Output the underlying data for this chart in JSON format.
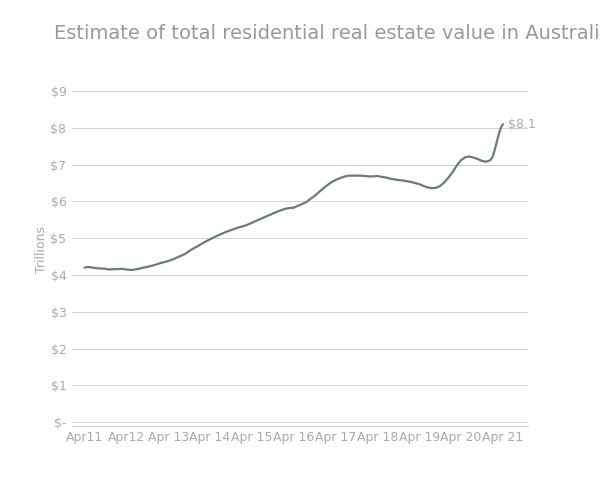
{
  "title": "Estimate of total residential real estate value in Australia",
  "ylabel": "Trillions",
  "x_labels": [
    "Apr11",
    "Apr12",
    "Apr 13",
    "Apr 14",
    "Apr 15",
    "Apr 16",
    "Apr 17",
    "Apr 18",
    "Apr 19",
    "Apr 20",
    "Apr 21"
  ],
  "x_positions": [
    0,
    1,
    2,
    3,
    4,
    5,
    6,
    7,
    8,
    9,
    10
  ],
  "y_ticks": [
    0,
    1,
    2,
    3,
    4,
    5,
    6,
    7,
    8,
    9
  ],
  "y_tick_labels": [
    "$-",
    "$1",
    "$2",
    "$3",
    "$4",
    "$5",
    "$6",
    "$7",
    "$8",
    "$9"
  ],
  "ylim": [
    -0.1,
    9.5
  ],
  "xlim": [
    -0.3,
    10.6
  ],
  "line_color": "#6b7885",
  "line_width": 1.6,
  "background_color": "#ffffff",
  "grid_color": "#d0d0d0",
  "annotation_text": "$8.1",
  "title_fontsize": 14,
  "title_color": "#999999",
  "axis_label_fontsize": 9,
  "tick_fontsize": 9,
  "tick_color": "#aaaaaa",
  "xy_data": [
    [
      0.0,
      4.2
    ],
    [
      0.08,
      4.22
    ],
    [
      0.15,
      4.21
    ],
    [
      0.25,
      4.19
    ],
    [
      0.35,
      4.18
    ],
    [
      0.5,
      4.17
    ],
    [
      0.6,
      4.15
    ],
    [
      0.7,
      4.16
    ],
    [
      0.8,
      4.16
    ],
    [
      0.9,
      4.17
    ],
    [
      1.0,
      4.15
    ],
    [
      1.1,
      4.14
    ],
    [
      1.15,
      4.14
    ],
    [
      1.2,
      4.15
    ],
    [
      1.3,
      4.17
    ],
    [
      1.4,
      4.2
    ],
    [
      1.5,
      4.22
    ],
    [
      1.6,
      4.25
    ],
    [
      1.7,
      4.28
    ],
    [
      1.8,
      4.32
    ],
    [
      1.9,
      4.35
    ],
    [
      2.0,
      4.38
    ],
    [
      2.1,
      4.42
    ],
    [
      2.2,
      4.47
    ],
    [
      2.3,
      4.52
    ],
    [
      2.4,
      4.57
    ],
    [
      2.5,
      4.65
    ],
    [
      2.6,
      4.72
    ],
    [
      2.7,
      4.78
    ],
    [
      2.8,
      4.85
    ],
    [
      2.9,
      4.91
    ],
    [
      3.0,
      4.97
    ],
    [
      3.1,
      5.03
    ],
    [
      3.2,
      5.08
    ],
    [
      3.3,
      5.13
    ],
    [
      3.4,
      5.18
    ],
    [
      3.5,
      5.22
    ],
    [
      3.6,
      5.26
    ],
    [
      3.7,
      5.3
    ],
    [
      3.8,
      5.33
    ],
    [
      3.9,
      5.37
    ],
    [
      4.0,
      5.42
    ],
    [
      4.1,
      5.47
    ],
    [
      4.2,
      5.52
    ],
    [
      4.3,
      5.57
    ],
    [
      4.4,
      5.62
    ],
    [
      4.5,
      5.67
    ],
    [
      4.6,
      5.72
    ],
    [
      4.7,
      5.76
    ],
    [
      4.8,
      5.8
    ],
    [
      4.9,
      5.82
    ],
    [
      5.0,
      5.83
    ],
    [
      5.1,
      5.88
    ],
    [
      5.2,
      5.93
    ],
    [
      5.3,
      5.98
    ],
    [
      5.4,
      6.07
    ],
    [
      5.5,
      6.15
    ],
    [
      5.6,
      6.25
    ],
    [
      5.7,
      6.35
    ],
    [
      5.8,
      6.44
    ],
    [
      5.9,
      6.52
    ],
    [
      6.0,
      6.58
    ],
    [
      6.1,
      6.63
    ],
    [
      6.2,
      6.67
    ],
    [
      6.3,
      6.7
    ],
    [
      6.4,
      6.7
    ],
    [
      6.5,
      6.7
    ],
    [
      6.6,
      6.7
    ],
    [
      6.7,
      6.69
    ],
    [
      6.8,
      6.68
    ],
    [
      6.9,
      6.68
    ],
    [
      7.0,
      6.69
    ],
    [
      7.1,
      6.67
    ],
    [
      7.2,
      6.65
    ],
    [
      7.3,
      6.62
    ],
    [
      7.4,
      6.6
    ],
    [
      7.5,
      6.58
    ],
    [
      7.6,
      6.57
    ],
    [
      7.7,
      6.55
    ],
    [
      7.8,
      6.53
    ],
    [
      7.9,
      6.5
    ],
    [
      8.0,
      6.47
    ],
    [
      8.1,
      6.42
    ],
    [
      8.2,
      6.38
    ],
    [
      8.3,
      6.36
    ],
    [
      8.4,
      6.37
    ],
    [
      8.5,
      6.42
    ],
    [
      8.6,
      6.52
    ],
    [
      8.7,
      6.65
    ],
    [
      8.8,
      6.8
    ],
    [
      8.9,
      6.98
    ],
    [
      9.0,
      7.12
    ],
    [
      9.1,
      7.2
    ],
    [
      9.2,
      7.22
    ],
    [
      9.3,
      7.19
    ],
    [
      9.4,
      7.15
    ],
    [
      9.5,
      7.1
    ],
    [
      9.6,
      7.08
    ],
    [
      9.7,
      7.12
    ],
    [
      9.75,
      7.2
    ],
    [
      9.8,
      7.38
    ],
    [
      9.85,
      7.6
    ],
    [
      9.9,
      7.82
    ],
    [
      9.95,
      8.0
    ],
    [
      10.0,
      8.1
    ]
  ]
}
